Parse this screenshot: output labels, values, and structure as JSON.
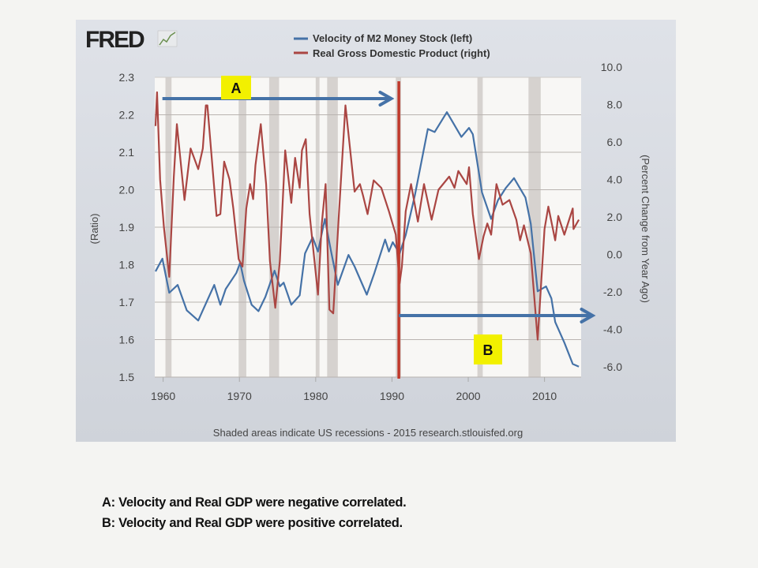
{
  "logo": {
    "text": "FRED"
  },
  "chart_data": {
    "type": "line",
    "legend": [
      "Velocity of M2 Money Stock (left)",
      "Real Gross Domestic Product (right)"
    ],
    "legend_placement": "top-center",
    "ylabel_left": "(Ratio)",
    "ylabel_right": "(Percent Change from Year Ago)",
    "xlim": [
      1958.9,
      2014.8
    ],
    "ylim_left": [
      1.5,
      2.3
    ],
    "ylim_right": [
      -6.0,
      10.0
    ],
    "x_ticks": [
      "1960",
      "1970",
      "1980",
      "1990",
      "2000",
      "2010"
    ],
    "y_ticks_left": [
      "2.3",
      "2.2",
      "2.1",
      "2.0",
      "1.9",
      "1.8",
      "1.7",
      "1.6",
      "1.5"
    ],
    "y_ticks_right": [
      "10.0",
      "8.0",
      "6.0",
      "4.0",
      "2.0",
      "0.0",
      "-2.0",
      "-4.0",
      "-6.0"
    ],
    "grid": true,
    "colors": {
      "velocity": "#4572a7",
      "gdp": "#aa4643",
      "recession": "#d6d2cf",
      "plot_bg": "#f8f7f5",
      "annotation_box": "#f2f000"
    },
    "recessions": [
      [
        1960.3,
        1961.1
      ],
      [
        1969.9,
        1970.9
      ],
      [
        1973.9,
        1975.2
      ],
      [
        1980.0,
        1980.5
      ],
      [
        1981.5,
        1982.9
      ],
      [
        1990.5,
        1991.2
      ],
      [
        2001.2,
        2001.9
      ],
      [
        2007.9,
        2009.5
      ]
    ],
    "series": [
      {
        "name": "Velocity of M2 Money Stock (left)",
        "axis": "left",
        "x": [
          1959.0,
          1959.9,
          1960.8,
          1961.9,
          1963.1,
          1964.6,
          1966.7,
          1967.5,
          1968.2,
          1969.6,
          1970.1,
          1970.6,
          1971.6,
          1972.5,
          1973.4,
          1974.6,
          1975.3,
          1975.8,
          1976.8,
          1977.9,
          1978.6,
          1979.6,
          1980.3,
          1981.2,
          1982.0,
          1982.9,
          1984.3,
          1985.1,
          1986.7,
          1987.7,
          1989.1,
          1989.6,
          1990.1,
          1991.0,
          1991.8,
          1993.0,
          1994.7,
          1995.6,
          1997.2,
          1999.1,
          2000.1,
          2000.6,
          2001.8,
          2003.0,
          2003.9,
          2004.9,
          2006.0,
          2007.5,
          2008.2,
          2009.1,
          2010.2,
          2010.9,
          2011.4,
          2012.6,
          2013.7,
          2014.5
        ],
        "y": [
          1.782,
          1.816,
          1.725,
          1.746,
          1.678,
          1.651,
          1.746,
          1.693,
          1.735,
          1.778,
          1.805,
          1.757,
          1.693,
          1.676,
          1.714,
          1.784,
          1.742,
          1.752,
          1.693,
          1.718,
          1.83,
          1.873,
          1.835,
          1.922,
          1.837,
          1.746,
          1.826,
          1.795,
          1.72,
          1.778,
          1.867,
          1.835,
          1.86,
          1.83,
          1.879,
          1.985,
          2.162,
          2.154,
          2.207,
          2.141,
          2.165,
          2.148,
          1.993,
          1.922,
          1.972,
          2.004,
          2.031,
          1.979,
          1.909,
          1.729,
          1.742,
          1.71,
          1.647,
          1.592,
          1.535,
          1.528
        ]
      },
      {
        "name": "Real Gross Domestic Product (right)",
        "axis": "right",
        "x": [
          1959.0,
          1959.2,
          1959.6,
          1960.1,
          1960.8,
          1961.4,
          1961.8,
          1962.8,
          1963.6,
          1964.6,
          1965.2,
          1965.6,
          1965.8,
          1967.0,
          1967.5,
          1968.0,
          1968.7,
          1969.2,
          1969.9,
          1970.4,
          1970.9,
          1971.4,
          1971.8,
          1972.1,
          1972.8,
          1973.5,
          1974.0,
          1974.7,
          1975.3,
          1976.0,
          1976.8,
          1977.3,
          1977.9,
          1978.2,
          1978.7,
          1979.2,
          1980.3,
          1980.8,
          1981.3,
          1981.8,
          1982.3,
          1983.0,
          1983.9,
          1985.1,
          1985.8,
          1986.2,
          1986.8,
          1987.6,
          1988.6,
          1989.6,
          1990.5,
          1991.0,
          1991.3,
          1991.8,
          1992.5,
          1993.4,
          1994.2,
          1995.2,
          1996.1,
          1997.5,
          1998.2,
          1998.7,
          1999.8,
          2000.1,
          2000.6,
          2001.4,
          2002.0,
          2002.5,
          2003.0,
          2003.7,
          2004.5,
          2005.4,
          2006.3,
          2006.8,
          2007.3,
          2008.2,
          2009.1,
          2010.0,
          2010.5,
          2011.4,
          2011.8,
          2012.6,
          2013.7,
          2013.8,
          2014.5
        ],
        "y": [
          7.4,
          9.2,
          4.55,
          2.0,
          -0.65,
          4.7,
          7.5,
          3.45,
          6.2,
          5.1,
          6.2,
          8.5,
          8.5,
          2.6,
          2.7,
          5.5,
          4.55,
          3.0,
          0.3,
          -0.1,
          3.0,
          4.3,
          3.5,
          5.3,
          7.5,
          4.3,
          0.2,
          -2.3,
          0.2,
          6.1,
          3.3,
          5.7,
          4.1,
          6.1,
          6.7,
          2.7,
          -1.6,
          2.2,
          4.3,
          -2.4,
          -2.6,
          2.4,
          8.5,
          3.9,
          4.3,
          3.7,
          2.7,
          4.5,
          4.1,
          2.85,
          1.6,
          -1.0,
          -0.1,
          2.85,
          4.3,
          2.3,
          4.3,
          2.4,
          4.0,
          4.7,
          4.1,
          5.0,
          4.3,
          5.2,
          2.7,
          0.3,
          1.5,
          2.2,
          1.6,
          4.3,
          3.2,
          3.45,
          2.4,
          1.3,
          2.1,
          0.6,
          -4.0,
          1.9,
          3.1,
          1.3,
          2.6,
          1.6,
          3.0,
          1.9,
          2.4
        ]
      }
    ],
    "annotations": {
      "A": {
        "label": "A",
        "arrow_from": 1959.9,
        "arrow_to": 1989.9
      },
      "B": {
        "label": "B",
        "arrow_from": 1990.9,
        "arrow_to": 2016.3
      },
      "divider_year": 1990.9
    },
    "footer": "Shaded areas indicate US recessions - 2015 research.stlouisfed.org"
  },
  "notes": [
    "A: Velocity and Real GDP were negative correlated.",
    "B: Velocity and Real GDP were positive correlated."
  ]
}
